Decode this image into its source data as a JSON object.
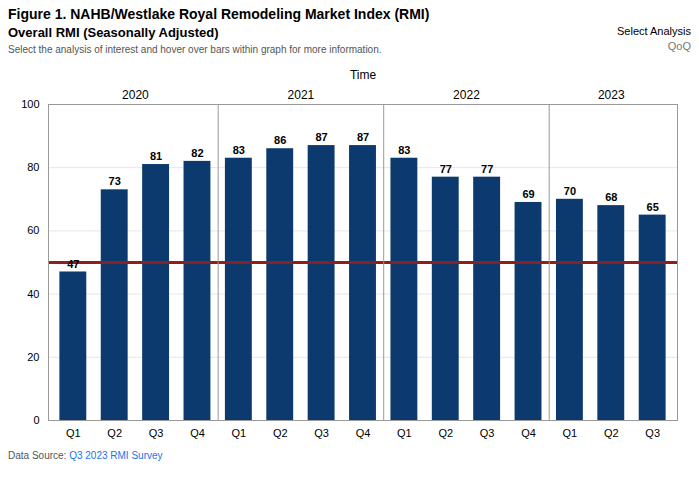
{
  "chart_data": {
    "type": "bar",
    "title": "Figure 1. NAHB/Westlake Royal Remodeling Market Index (RMI)",
    "subtitle": "Overall RMI (Seasonally Adjusted)",
    "caption": "Select the analysis of interest and hover over bars within graph for more information.",
    "xlabel": "Time",
    "categories": [
      "Q1",
      "Q2",
      "Q3",
      "Q4",
      "Q1",
      "Q2",
      "Q3",
      "Q4",
      "Q1",
      "Q2",
      "Q3",
      "Q4",
      "Q1",
      "Q2",
      "Q3"
    ],
    "groups": [
      {
        "name": "2020",
        "size": 4
      },
      {
        "name": "2021",
        "size": 4
      },
      {
        "name": "2022",
        "size": 4
      },
      {
        "name": "2023",
        "size": 3
      }
    ],
    "values": [
      47,
      73,
      81,
      82,
      83,
      86,
      87,
      87,
      83,
      77,
      77,
      69,
      70,
      68,
      65
    ],
    "color": "#0d3a6e",
    "data_labels": true,
    "reference_line": {
      "value": 50,
      "color": "#8b2020"
    },
    "ylim": [
      0,
      100
    ],
    "yticks": [
      0,
      20,
      40,
      60,
      80,
      100
    ],
    "grid": true,
    "control": {
      "label": "Select Analysis",
      "value": "QoQ"
    },
    "source": {
      "label": "Data Source: ",
      "text": "Q3 2023 RMI Survey",
      "color": "#1a73e8"
    }
  }
}
